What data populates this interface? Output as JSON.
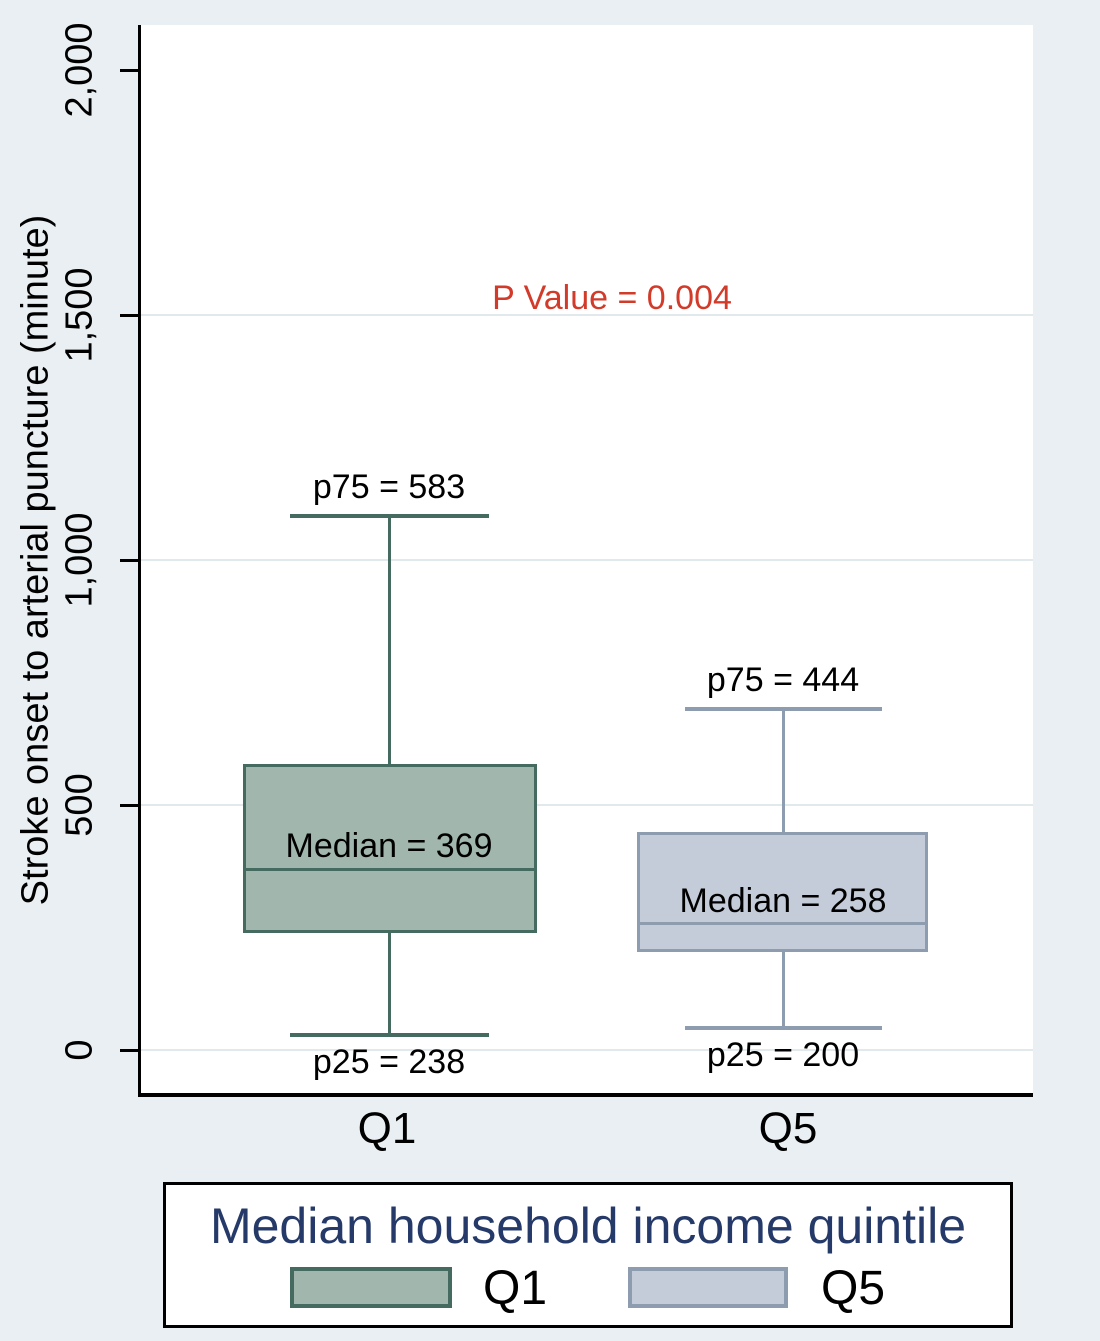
{
  "chart_data": {
    "type": "box",
    "orientation": "vertical",
    "y_axis": {
      "title": "Stroke onset to arterial puncture (minute)",
      "ticks": [
        {
          "value": 2000,
          "label": "2,000"
        },
        {
          "value": 1500,
          "label": "1,500"
        },
        {
          "value": 1000,
          "label": "1,000"
        },
        {
          "value": 500,
          "label": "500"
        },
        {
          "value": 0,
          "label": "0"
        }
      ],
      "gridline_values": [
        1500,
        1000,
        500,
        0
      ],
      "range": [
        0,
        2085
      ],
      "grid": "on"
    },
    "categories": [
      "Q1",
      "Q5"
    ],
    "annotation": {
      "p_value_label": "P Value = 0.004",
      "p_value": 0.004,
      "color": "#d23b2a"
    },
    "boxes": [
      {
        "category": "Q1",
        "p25": 238,
        "median": 369,
        "p75": 583,
        "whisker_low": 30,
        "whisker_high": 1090,
        "fill": "#a1b6ad",
        "stroke": "#456b61",
        "labels": {
          "p75": "p75 = 583",
          "median": "Median = 369",
          "p25": "p25 = 238"
        }
      },
      {
        "category": "Q5",
        "p25": 200,
        "median": 258,
        "p75": 444,
        "whisker_low": 45,
        "whisker_high": 695,
        "fill": "#c4ccd9",
        "stroke": "#8e9cb0",
        "labels": {
          "p75": "p75 = 444",
          "median": "Median = 258",
          "p25": "p25 = 200"
        }
      }
    ],
    "legend": {
      "title": "Median household income quintile",
      "title_color": "#253a69",
      "position": "bottom",
      "items": [
        {
          "label": "Q1",
          "fill": "#a1b6ad",
          "stroke": "#456b61"
        },
        {
          "label": "Q5",
          "fill": "#c4ccd9",
          "stroke": "#8e9cb0"
        }
      ]
    }
  }
}
